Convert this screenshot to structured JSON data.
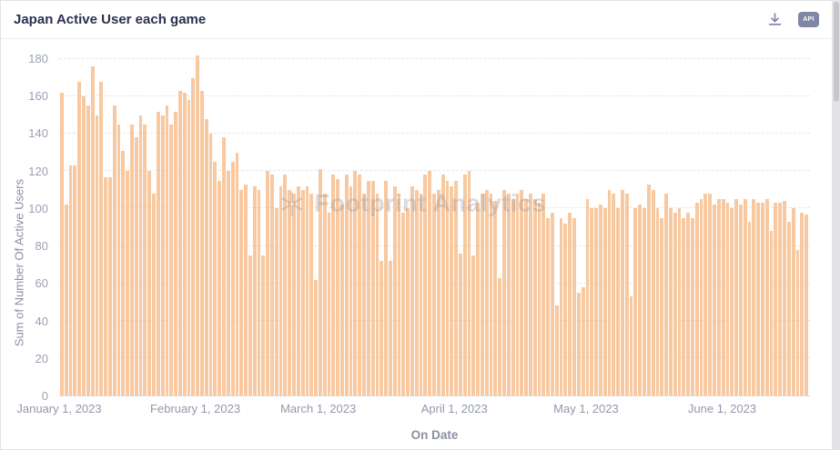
{
  "header": {
    "title": "Japan Active User each game",
    "api_label": "API"
  },
  "watermark": {
    "text": "Footprint Analytics"
  },
  "chart_data": {
    "type": "bar",
    "title": "Japan Active User each game",
    "xlabel": "On Date",
    "ylabel": "Sum of Number Of Active Users",
    "ylim": [
      0,
      180
    ],
    "grid": "horizontal-dashed",
    "legend": "none",
    "bar_color": "#f8c9a0",
    "y_ticks": [
      0,
      20,
      40,
      60,
      80,
      100,
      120,
      140,
      160,
      180
    ],
    "x_tick_labels": [
      "January 1, 2023",
      "February 1, 2023",
      "March 1, 2023",
      "April 1, 2023",
      "May 1, 2023",
      "June 1, 2023"
    ],
    "x_tick_day_index": [
      0,
      31,
      59,
      90,
      120,
      151
    ],
    "total_days": 171,
    "values": [
      162,
      102,
      123,
      123,
      168,
      160,
      155,
      176,
      150,
      168,
      117,
      117,
      155,
      145,
      131,
      120,
      145,
      138,
      150,
      145,
      120,
      108,
      152,
      150,
      155,
      145,
      152,
      163,
      162,
      158,
      170,
      182,
      163,
      148,
      140,
      125,
      115,
      138,
      120,
      125,
      130,
      110,
      113,
      75,
      112,
      110,
      75,
      120,
      118,
      100,
      112,
      118,
      110,
      108,
      112,
      110,
      112,
      108,
      62,
      121,
      108,
      98,
      118,
      116,
      102,
      118,
      112,
      120,
      118,
      108,
      115,
      115,
      108,
      72,
      115,
      72,
      112,
      108,
      98,
      100,
      112,
      110,
      108,
      118,
      120,
      108,
      110,
      118,
      115,
      112,
      115,
      76,
      118,
      120,
      75,
      103,
      108,
      110,
      108,
      104,
      63,
      110,
      108,
      105,
      108,
      110,
      105,
      108,
      105,
      103,
      108,
      95,
      98,
      48,
      95,
      92,
      98,
      95,
      55,
      58,
      105,
      100,
      100,
      102,
      100,
      110,
      108,
      100,
      110,
      108,
      53,
      100,
      102,
      100,
      113,
      110,
      100,
      95,
      108,
      100,
      98,
      100,
      95,
      98,
      95,
      103,
      105,
      108,
      108,
      102,
      105,
      105,
      103,
      100,
      105,
      102,
      105,
      93,
      105,
      103,
      103,
      105,
      88,
      103,
      103,
      104,
      93,
      100,
      78,
      98,
      97
    ]
  }
}
